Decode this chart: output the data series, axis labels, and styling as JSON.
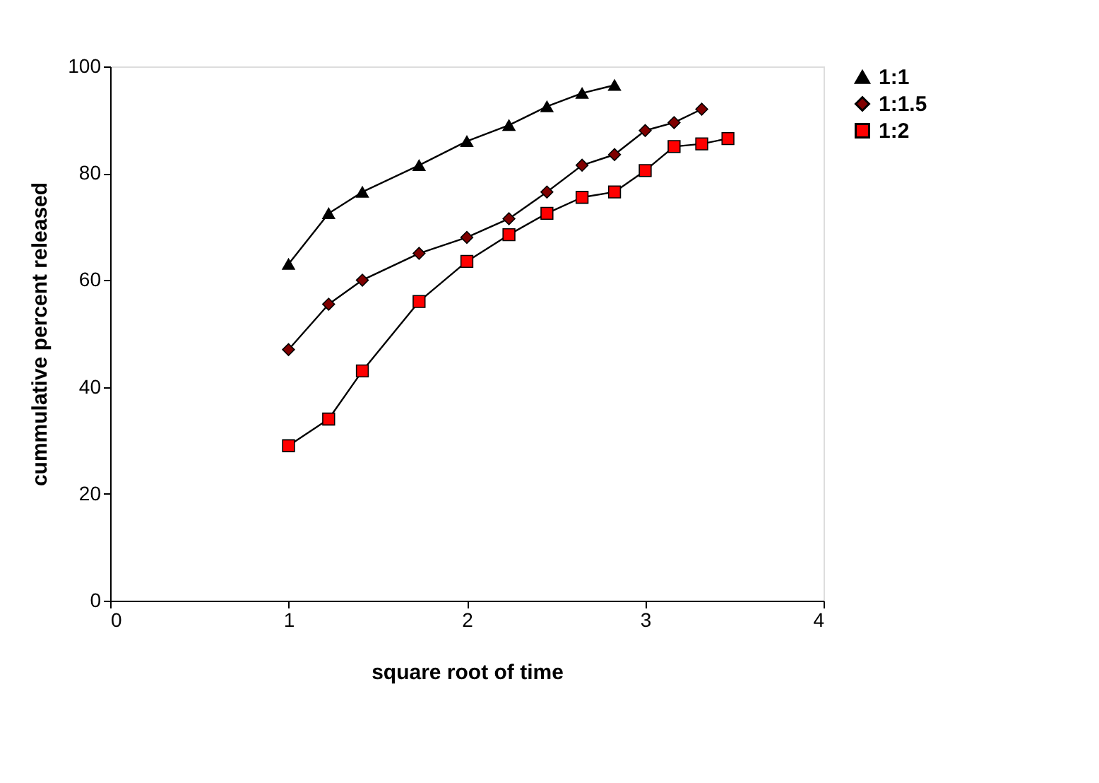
{
  "chart_data": {
    "type": "line",
    "xlabel": "square root of time",
    "ylabel": "cummulative percent released",
    "xlim": [
      0,
      4
    ],
    "xticks": [
      0,
      1,
      2,
      3,
      4
    ],
    "ylim": [
      0,
      100
    ],
    "yticks": [
      0,
      20,
      40,
      60,
      80,
      100
    ],
    "grid": false,
    "legend": "right",
    "line_style": "solid",
    "series": [
      {
        "name": "1:1",
        "color": "#000000",
        "marker": "triangle",
        "x": [
          1,
          1.225,
          1.414,
          1.732,
          2,
          2.236,
          2.449,
          2.646,
          2.828
        ],
        "values": [
          63,
          72.5,
          76.5,
          81.5,
          86,
          89,
          92.5,
          95,
          96.5
        ]
      },
      {
        "name": "1:1.5",
        "color": "#800000",
        "marker": "diamond",
        "x": [
          1,
          1.225,
          1.414,
          1.732,
          2,
          2.236,
          2.449,
          2.646,
          2.828,
          3,
          3.162,
          3.317
        ],
        "values": [
          47,
          55.5,
          60,
          65,
          68,
          71.5,
          76.5,
          81.5,
          83.5,
          88,
          89.5,
          92
        ]
      },
      {
        "name": "1:2",
        "color": "#ff0000",
        "marker": "square",
        "x": [
          1,
          1.225,
          1.414,
          1.732,
          2,
          2.236,
          2.449,
          2.646,
          2.828,
          3,
          3.162,
          3.317,
          3.464
        ],
        "values": [
          29,
          34,
          43,
          56,
          63.5,
          68.5,
          72.5,
          75.5,
          76.5,
          80.5,
          85,
          85.5,
          86.5
        ]
      }
    ]
  }
}
